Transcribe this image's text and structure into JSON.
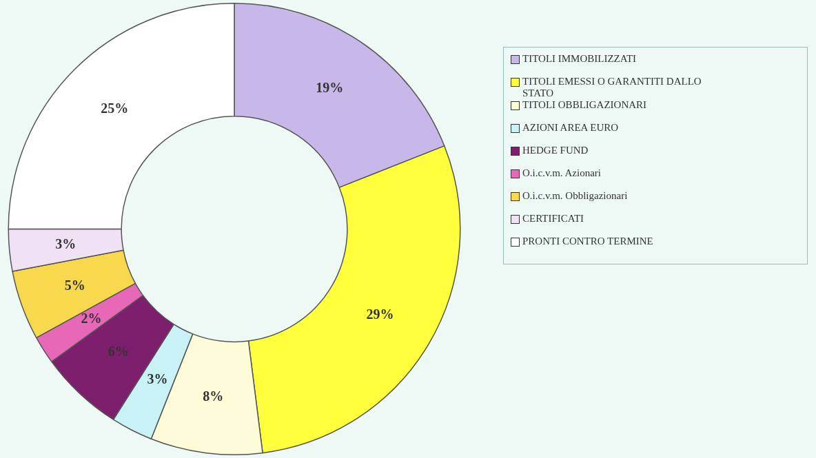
{
  "chart_data": {
    "type": "donut",
    "categories": [
      "TITOLI IMMOBILIZZATI",
      "TITOLI EMESSI O GARANTITI  DALLO STATO",
      "TITOLI OBBLIGAZIONARI",
      "AZIONI AREA EURO",
      "HEDGE FUND",
      "O.i.c.v.m. Azionari",
      "O.i.c.v.m. Obbligazionari",
      "CERTIFICATI",
      "PRONTI CONTRO TERMINE"
    ],
    "values": [
      19,
      29,
      8,
      3,
      6,
      2,
      5,
      3,
      25
    ],
    "colors": [
      "#c8b8ea",
      "#ffff3c",
      "#fdfbd8",
      "#c8f2f6",
      "#7e1f6e",
      "#e868b8",
      "#f8d84c",
      "#f0e2f4",
      "#ffffff"
    ],
    "value_labels": [
      "19%",
      "29%",
      "8%",
      "3%",
      "6%",
      "2%",
      "5%",
      "3%",
      "25%"
    ],
    "legend": "right"
  }
}
